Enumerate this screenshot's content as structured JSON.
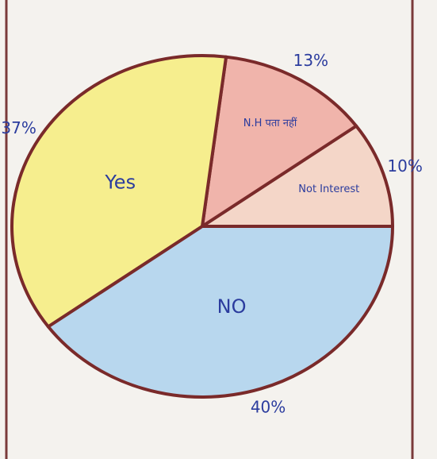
{
  "chart_data": {
    "type": "pie",
    "categories": [
      "Not Interest",
      "N.H पता नहीं",
      "Yes",
      "NO"
    ],
    "values": [
      10,
      13,
      37,
      40
    ],
    "value_labels": [
      "10%",
      "13%",
      "37%",
      "40%"
    ],
    "colors": [
      "#f4d6c8",
      "#f0b4ab",
      "#f6ee8e",
      "#b8d7ee"
    ]
  }
}
